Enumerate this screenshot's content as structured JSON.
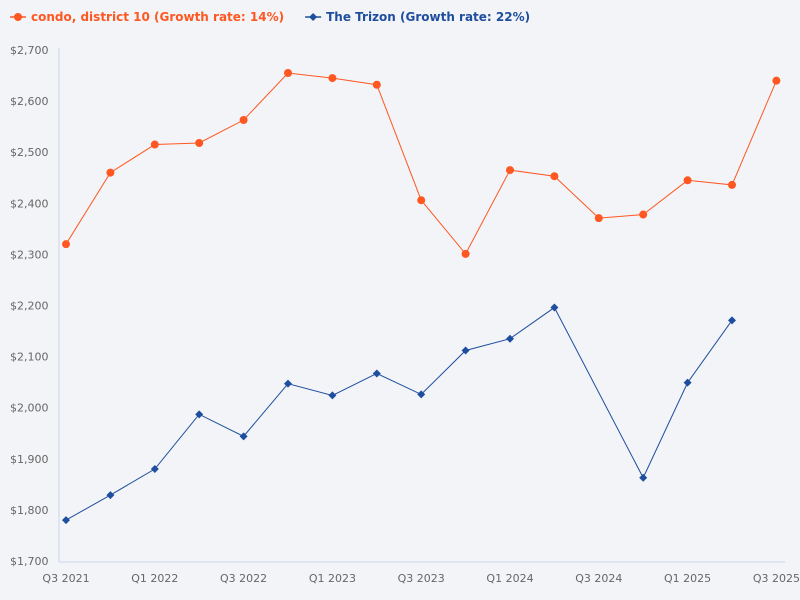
{
  "chart_data": {
    "type": "line",
    "title": "",
    "xlabel": "",
    "ylabel": "",
    "ylim": [
      1700,
      2700
    ],
    "yticks": [
      "$1,700",
      "$1,800",
      "$1,900",
      "$2,000",
      "$2,100",
      "$2,200",
      "$2,300",
      "$2,400",
      "$2,500",
      "$2,600",
      "$2,700"
    ],
    "ytick_values": [
      1700,
      1800,
      1900,
      2000,
      2100,
      2200,
      2300,
      2400,
      2500,
      2600,
      2700
    ],
    "categories": [
      "Q3 2021",
      "Q4 2021",
      "Q1 2022",
      "Q2 2022",
      "Q3 2022",
      "Q4 2022",
      "Q1 2023",
      "Q2 2023",
      "Q3 2023",
      "Q4 2023",
      "Q1 2024",
      "Q2 2024",
      "Q3 2024",
      "Q4 2024",
      "Q1 2025",
      "Q2 2025",
      "Q3 2025"
    ],
    "xtick_labels": [
      "Q3 2021",
      "Q1 2022",
      "Q3 2022",
      "Q1 2023",
      "Q3 2023",
      "Q1 2024",
      "Q3 2024",
      "Q1 2025",
      "Q3 2025"
    ],
    "grid": false,
    "legend_position": "top-left",
    "series": [
      {
        "name": "condo, district 10 (Growth rate: 14%)",
        "color": "#ff5722",
        "marker": "circle",
        "values": [
          2320,
          2460,
          2515,
          2518,
          2563,
          2655,
          2645,
          2632,
          2406,
          2301,
          2465,
          2453,
          2371,
          2378,
          2445,
          2436,
          2640
        ]
      },
      {
        "name": "The Trizon (Growth rate: 22%)",
        "color": "#1f4e9e",
        "marker": "diamond",
        "values": [
          1780,
          1829,
          1880,
          1987,
          1944,
          2047,
          2024,
          2067,
          2026,
          2112,
          2135,
          2196,
          null,
          1863,
          2049,
          2171,
          null
        ]
      }
    ]
  }
}
